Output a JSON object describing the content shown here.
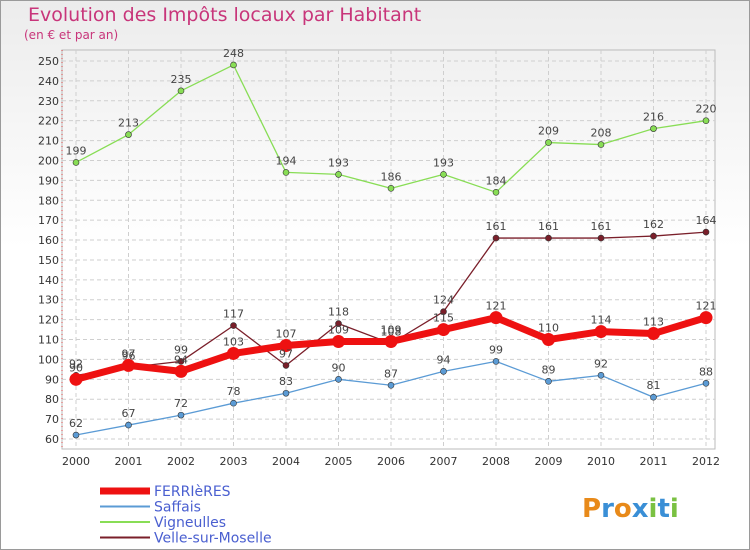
{
  "chart_data": {
    "type": "line",
    "title": "Evolution des Impôts locaux par Habitant",
    "subtitle": "(en € et par an)",
    "x": [
      "2000",
      "2001",
      "2002",
      "2003",
      "2004",
      "2005",
      "2006",
      "2007",
      "2008",
      "2009",
      "2010",
      "2011",
      "2012"
    ],
    "ylim": [
      60,
      250
    ],
    "yticks": [
      60,
      70,
      80,
      90,
      100,
      110,
      120,
      130,
      140,
      150,
      160,
      170,
      180,
      190,
      200,
      210,
      220,
      230,
      240,
      250
    ],
    "grid": true,
    "legend_position": "bottom-left",
    "series": [
      {
        "name": "FERRIèRES",
        "color": "#ee1111",
        "values": [
          90,
          97,
          94,
          103,
          107,
          109,
          109,
          115,
          121,
          110,
          114,
          113,
          121
        ]
      },
      {
        "name": "Saffais",
        "color": "#5b9bd5",
        "values": [
          62,
          67,
          72,
          78,
          83,
          90,
          87,
          94,
          99,
          89,
          92,
          81,
          88
        ]
      },
      {
        "name": "Vigneulles",
        "color": "#88dd55",
        "values": [
          199,
          213,
          235,
          248,
          194,
          193,
          186,
          193,
          184,
          209,
          208,
          216,
          220
        ]
      },
      {
        "name": "Velle-sur-Moselle",
        "color": "#7a1f2a",
        "values": [
          92,
          96,
          99,
          117,
          97,
          118,
          108,
          124,
          161,
          161,
          161,
          162,
          164
        ]
      }
    ]
  },
  "logo": {
    "text": "Proxiti",
    "colors": [
      "#e88a1a",
      "#3a8fd6",
      "#e88a1a",
      "#3a8fd6",
      "#7ac142",
      "#3a8fd6",
      "#7ac142"
    ]
  }
}
